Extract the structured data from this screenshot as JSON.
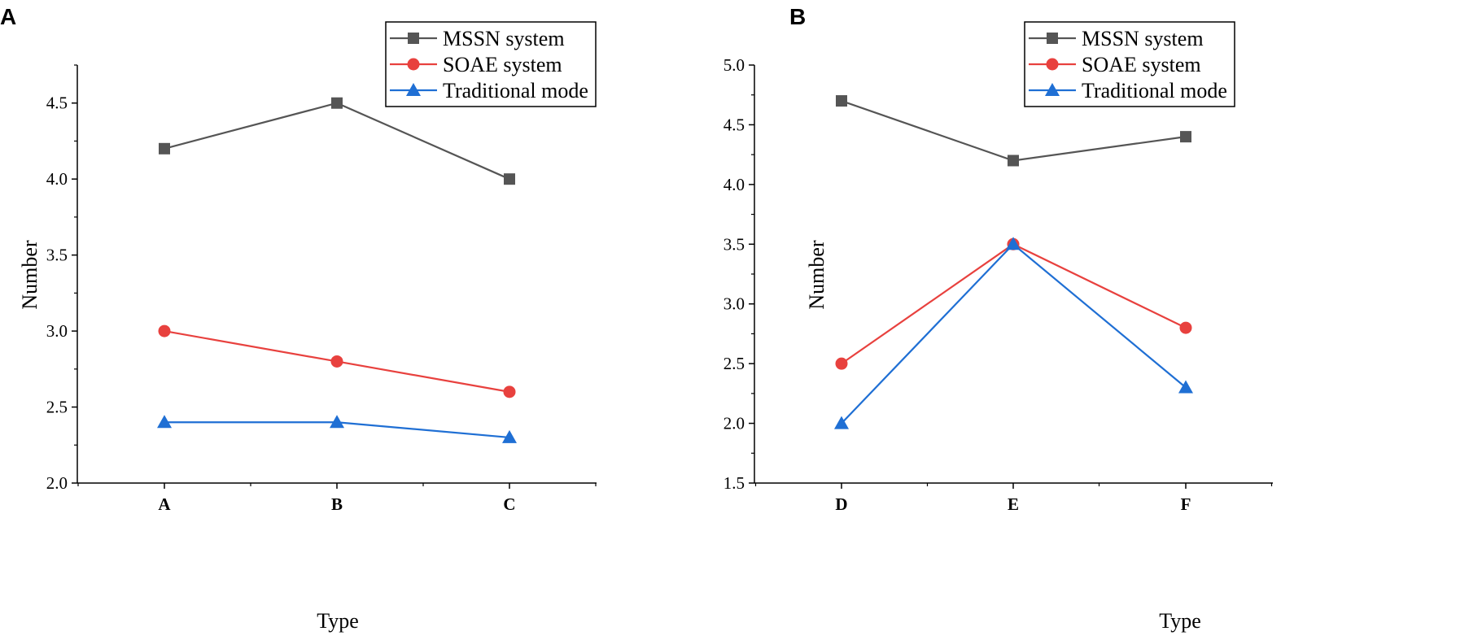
{
  "chart_data": [
    {
      "type": "line",
      "panel_label": "A",
      "categories": [
        "A",
        "B",
        "C"
      ],
      "xlabel": "Type",
      "ylabel": "Number",
      "ylim": [
        2.0,
        4.75
      ],
      "yticks": [
        "2.0",
        "2.5",
        "3.0",
        "3.5",
        "4.0",
        "4.5"
      ],
      "legend_position": "top-right",
      "series": [
        {
          "name": "MSSN system",
          "color": "#555555",
          "marker": "square",
          "values": [
            4.2,
            4.5,
            4.0
          ]
        },
        {
          "name": "SOAE system",
          "color": "#e8413e",
          "marker": "circle",
          "values": [
            3.0,
            2.8,
            2.6
          ]
        },
        {
          "name": "Traditional mode",
          "color": "#1f6fd4",
          "marker": "triangle",
          "values": [
            2.4,
            2.4,
            2.3
          ]
        }
      ]
    },
    {
      "type": "line",
      "panel_label": "B",
      "categories": [
        "D",
        "E",
        "F"
      ],
      "xlabel": "Type",
      "ylabel": "Number",
      "ylim": [
        1.5,
        5.0
      ],
      "yticks": [
        "1.5",
        "2.0",
        "2.5",
        "3.0",
        "3.5",
        "4.0",
        "4.5",
        "5.0"
      ],
      "legend_position": "top-right",
      "series": [
        {
          "name": "MSSN system",
          "color": "#555555",
          "marker": "square",
          "values": [
            4.7,
            4.2,
            4.4
          ]
        },
        {
          "name": "SOAE system",
          "color": "#e8413e",
          "marker": "circle",
          "values": [
            2.5,
            3.5,
            2.8
          ]
        },
        {
          "name": "Traditional mode",
          "color": "#1f6fd4",
          "marker": "triangle",
          "values": [
            2.0,
            3.5,
            2.3
          ]
        }
      ]
    }
  ]
}
